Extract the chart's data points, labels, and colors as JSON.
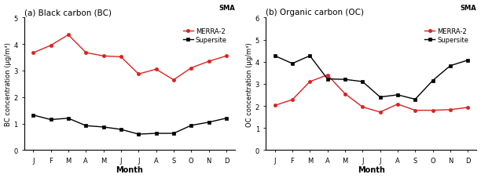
{
  "months": [
    "J",
    "F",
    "M",
    "A",
    "M",
    "J",
    "J",
    "A",
    "S",
    "O",
    "N",
    "D"
  ],
  "bc_merra2": [
    3.67,
    3.95,
    4.35,
    3.68,
    3.55,
    3.52,
    2.87,
    3.05,
    2.65,
    3.1,
    3.35,
    3.55
  ],
  "bc_supersite": [
    1.32,
    1.15,
    1.2,
    0.92,
    0.87,
    0.78,
    0.6,
    0.63,
    0.63,
    0.93,
    1.05,
    1.2
  ],
  "oc_merra2": [
    2.02,
    2.28,
    3.1,
    3.4,
    2.55,
    1.95,
    1.72,
    2.08,
    1.8,
    1.8,
    1.83,
    1.93
  ],
  "oc_supersite": [
    4.27,
    3.92,
    4.27,
    3.22,
    3.2,
    3.1,
    2.4,
    2.5,
    2.3,
    3.15,
    3.82,
    4.07
  ],
  "bc_ylim": [
    0,
    5
  ],
  "oc_ylim": [
    0,
    6
  ],
  "bc_yticks": [
    0,
    1,
    2,
    3,
    4,
    5
  ],
  "oc_yticks": [
    0,
    1,
    2,
    3,
    4,
    5,
    6
  ],
  "title_a": "(a) Black carbon (BC)",
  "title_b": "(b) Organic carbon (OC)",
  "ylabel_a": "BC concentration (μg/m³)",
  "ylabel_b": "OC concentration (μg/m³)",
  "xlabel": "Month",
  "sma_label": "SMA",
  "legend_merra2": "MERRA-2",
  "legend_supersite": "Supersite",
  "color_merra2": "#e02020",
  "color_supersite": "#000000",
  "bg_color": "#ffffff"
}
